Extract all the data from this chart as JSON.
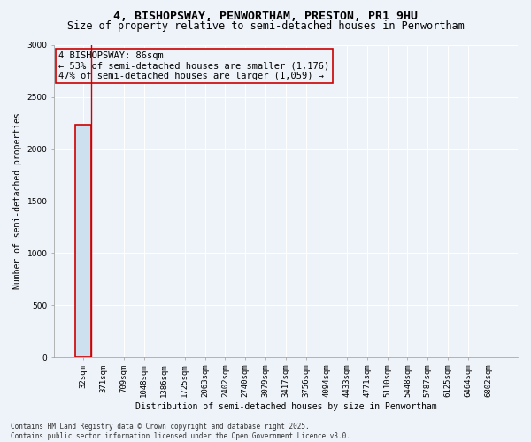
{
  "title_line1": "4, BISHOPSWAY, PENWORTHAM, PRESTON, PR1 9HU",
  "title_line2": "Size of property relative to semi-detached houses in Penwortham",
  "xlabel": "Distribution of semi-detached houses by size in Penwortham",
  "ylabel": "Number of semi-detached properties",
  "bar_color": "#cce0f0",
  "bar_edge_color": "#a0c4e0",
  "highlight_bar_color": "#cc0000",
  "annotation_box_color": "#cc0000",
  "annotation_text": "4 BISHOPSWAY: 86sqm\n← 53% of semi-detached houses are smaller (1,176)\n47% of semi-detached houses are larger (1,059) →",
  "ylim": [
    0,
    3000
  ],
  "yticks": [
    0,
    500,
    1000,
    1500,
    2000,
    2500,
    3000
  ],
  "categories": [
    "32sqm",
    "371sqm",
    "709sqm",
    "1048sqm",
    "1386sqm",
    "1725sqm",
    "2063sqm",
    "2402sqm",
    "2740sqm",
    "3079sqm",
    "3417sqm",
    "3756sqm",
    "4094sqm",
    "4433sqm",
    "4771sqm",
    "5110sqm",
    "5448sqm",
    "5787sqm",
    "6125sqm",
    "6464sqm",
    "6802sqm"
  ],
  "values": [
    2235,
    0,
    0,
    0,
    0,
    0,
    0,
    0,
    0,
    0,
    0,
    0,
    0,
    0,
    0,
    0,
    0,
    0,
    0,
    0,
    0
  ],
  "highlight_index": 0,
  "bg_color": "#eef3fa",
  "footer_text": "Contains HM Land Registry data © Crown copyright and database right 2025.\nContains public sector information licensed under the Open Government Licence v3.0.",
  "grid_color": "#ffffff",
  "title_fontsize": 9.5,
  "subtitle_fontsize": 8.5,
  "tick_fontsize": 6.5,
  "ylabel_fontsize": 7,
  "xlabel_fontsize": 7,
  "annotation_fontsize": 7.5,
  "footer_fontsize": 5.5
}
